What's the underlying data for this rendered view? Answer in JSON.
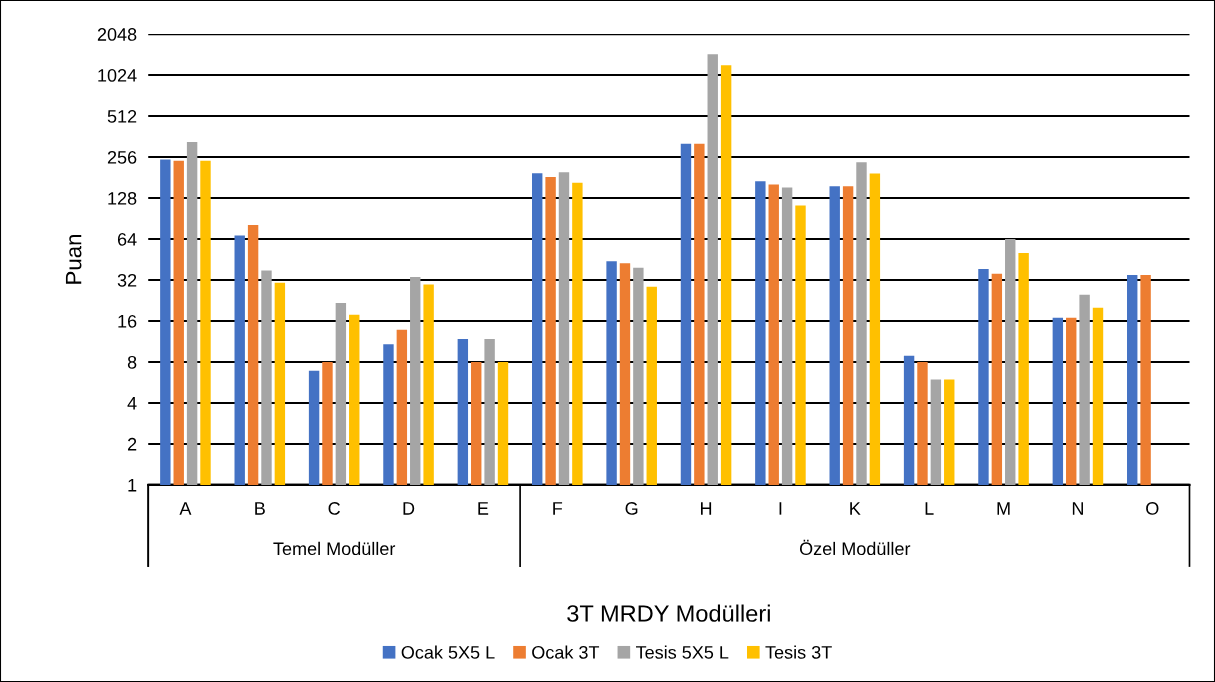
{
  "chart_data": {
    "type": "bar",
    "xlabel": "3T MRDY Modülleri",
    "ylabel": "Puan",
    "log": "y",
    "categories": [
      "A",
      "B",
      "C",
      "D",
      "E",
      "F",
      "G",
      "H",
      "I",
      "K",
      "L",
      "M",
      "N",
      "O"
    ],
    "series": [
      {
        "name": "Ocak 5X5 L",
        "color": "#4472c4",
        "values": [
          246,
          68,
          6.9,
          10.8,
          11.8,
          195,
          44,
          321,
          170,
          156,
          8.9,
          38.6,
          16.9,
          34.8
        ]
      },
      {
        "name": "Ocak 3T",
        "color": "#ed7d31",
        "values": [
          240,
          81,
          8,
          13.8,
          8,
          183,
          42.5,
          321,
          161,
          156,
          8,
          35.5,
          16.9,
          34.8
        ]
      },
      {
        "name": "Tesis 5X5 L",
        "color": "#a5a5a5",
        "values": [
          330,
          37.5,
          21.7,
          33.7,
          11.8,
          198,
          39.3,
          1458,
          153,
          234,
          5.95,
          64,
          24.9,
          null
        ]
      },
      {
        "name": "Tesis 3T",
        "color": "#ffc000",
        "values": [
          240,
          30.6,
          17.8,
          29.6,
          8,
          166,
          28.6,
          1209,
          113,
          194,
          5.95,
          50.6,
          20,
          null
        ]
      }
    ],
    "ylim": [
      1,
      2048
    ],
    "yticks": [
      1,
      2,
      4,
      8,
      16,
      32,
      64,
      128,
      256,
      512,
      1024,
      2048
    ],
    "grid": "y",
    "legend": "bottom",
    "annotations": [
      "Temel Modüller",
      "Özel Modüller"
    ]
  }
}
